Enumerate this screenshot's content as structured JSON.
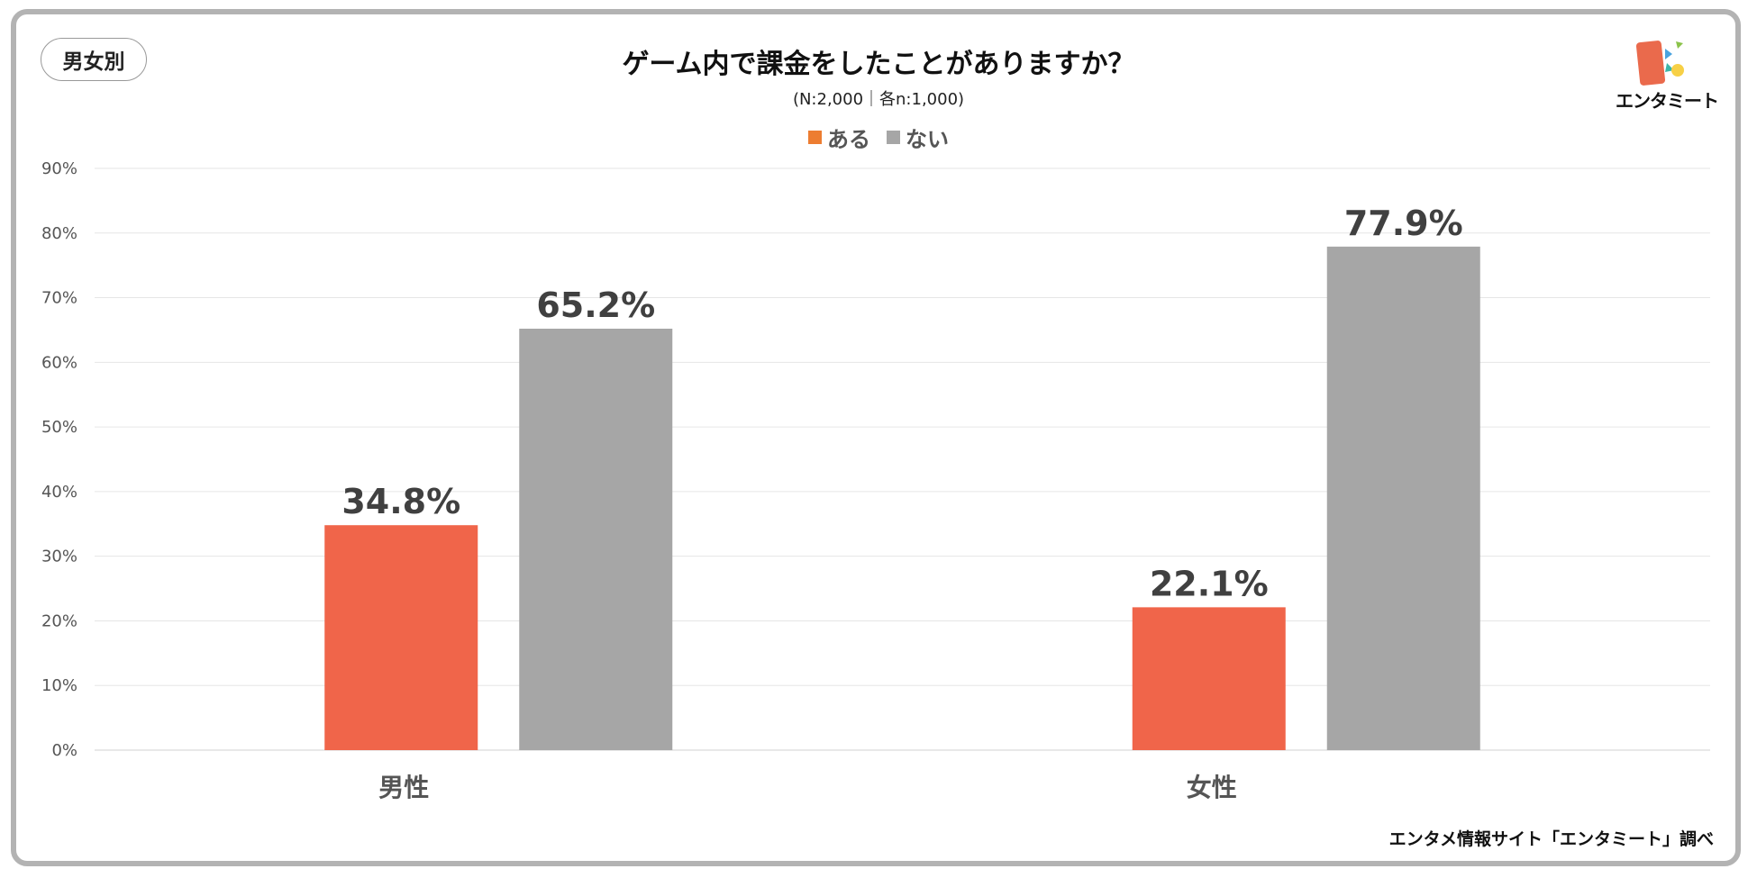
{
  "tag_label": "男女別",
  "logo_text": "エンタミート",
  "footer_source": "エンタメ情報サイト「エンタミート」調べ",
  "chart_data": {
    "type": "bar",
    "title": "ゲーム内で課金をしたことがありますか？",
    "subtitle": "(N:2,000｜各n:1,000)",
    "categories": [
      "男性",
      "女性"
    ],
    "series": [
      {
        "name": "ある",
        "values": [
          34.8,
          22.1
        ],
        "color": "#f0654a"
      },
      {
        "name": "ない",
        "values": [
          65.2,
          77.9
        ],
        "color": "#a6a6a6"
      }
    ],
    "legend_colors": [
      "#ed7d31",
      "#a6a6a6"
    ],
    "unit": "%",
    "ylim": [
      0,
      90
    ],
    "yticks": [
      0,
      10,
      20,
      30,
      40,
      50,
      60,
      70,
      80,
      90
    ],
    "ytick_labels": [
      "0%",
      "10%",
      "20%",
      "30%",
      "40%",
      "50%",
      "60%",
      "70%",
      "80%",
      "90%"
    ],
    "value_labels": [
      [
        "34.8%",
        "22.1%"
      ],
      [
        "65.2%",
        "77.9%"
      ]
    ],
    "grid": true,
    "legend_position": "top-center"
  }
}
